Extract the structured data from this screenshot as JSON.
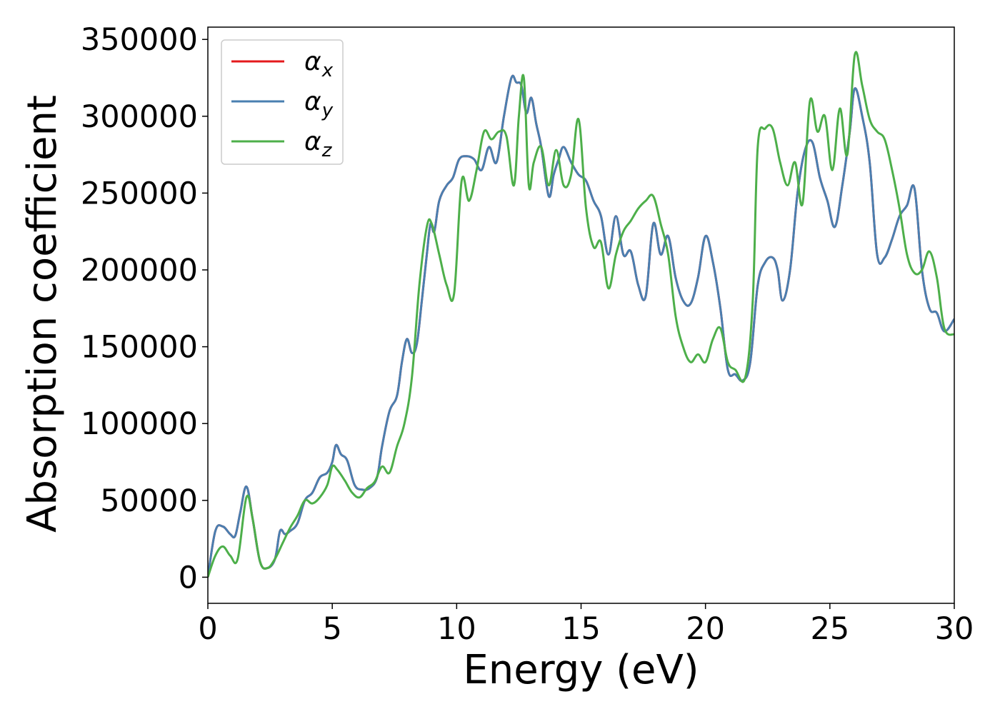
{
  "chart_data": {
    "type": "line",
    "title": "",
    "xlabel": "Energy (eV)",
    "ylabel": "Absorption coefficient",
    "xlim": [
      0,
      30
    ],
    "ylim": [
      -17000,
      358000
    ],
    "xticks": [
      0,
      5,
      10,
      15,
      20,
      25,
      30
    ],
    "yticks": [
      0,
      50000,
      100000,
      150000,
      200000,
      250000,
      300000,
      350000
    ],
    "grid": false,
    "legend_position": "top-left",
    "series": [
      {
        "name": "α",
        "subscript": "x",
        "color": "#e41a1c",
        "x": [
          0,
          0.3,
          0.6,
          0.9,
          1.1,
          1.3,
          1.55,
          1.8,
          2.1,
          2.4,
          2.7,
          2.9,
          3.1,
          3.3,
          3.6,
          3.9,
          4.2,
          4.5,
          4.8,
          5.0,
          5.15,
          5.35,
          5.6,
          5.9,
          6.2,
          6.5,
          6.8,
          7.0,
          7.3,
          7.6,
          7.8,
          8.0,
          8.2,
          8.4,
          8.6,
          8.8,
          8.95,
          9.1,
          9.3,
          9.6,
          9.85,
          10.1,
          10.4,
          10.7,
          11.0,
          11.3,
          11.6,
          11.9,
          12.2,
          12.4,
          12.6,
          12.8,
          13.0,
          13.2,
          13.4,
          13.7,
          13.9,
          14.1,
          14.3,
          14.6,
          14.9,
          15.2,
          15.5,
          15.8,
          16.1,
          16.4,
          16.7,
          17.0,
          17.3,
          17.6,
          17.9,
          18.2,
          18.5,
          18.8,
          19.1,
          19.4,
          19.7,
          20.0,
          20.3,
          20.6,
          20.9,
          21.2,
          21.5,
          21.8,
          22.1,
          22.4,
          22.7,
          22.9,
          23.1,
          23.4,
          23.7,
          24.0,
          24.3,
          24.6,
          24.9,
          25.2,
          25.5,
          25.8,
          26.0,
          26.3,
          26.6,
          26.9,
          27.2,
          27.5,
          27.8,
          28.1,
          28.4,
          28.7,
          29.0,
          29.3,
          29.6,
          30.0
        ],
        "y": [
          0,
          30000,
          33000,
          28000,
          27000,
          42000,
          59000,
          38000,
          10000,
          6000,
          12000,
          30000,
          28000,
          30000,
          35000,
          50000,
          55000,
          65000,
          68000,
          75000,
          86000,
          80000,
          76000,
          60000,
          57000,
          58000,
          65000,
          85000,
          108000,
          118000,
          140000,
          155000,
          146000,
          152000,
          180000,
          210000,
          230000,
          225000,
          245000,
          255000,
          260000,
          272000,
          274000,
          272000,
          265000,
          280000,
          270000,
          300000,
          325000,
          322000,
          320000,
          302000,
          312000,
          295000,
          280000,
          248000,
          262000,
          272000,
          280000,
          270000,
          262000,
          258000,
          245000,
          235000,
          210000,
          235000,
          210000,
          212000,
          190000,
          183000,
          230000,
          210000,
          222000,
          195000,
          180000,
          178000,
          195000,
          222000,
          205000,
          175000,
          135000,
          132000,
          128000,
          140000,
          190000,
          205000,
          208000,
          200000,
          180000,
          200000,
          250000,
          278000,
          283000,
          260000,
          245000,
          228000,
          255000,
          290000,
          318000,
          300000,
          270000,
          210000,
          208000,
          220000,
          235000,
          242000,
          253000,
          200000,
          175000,
          172000,
          160000,
          168000
        ],
        "hidden_under": "α_y"
      },
      {
        "name": "α",
        "subscript": "y",
        "color": "#4a7fb0",
        "x": [
          0,
          0.3,
          0.6,
          0.9,
          1.1,
          1.3,
          1.55,
          1.8,
          2.1,
          2.4,
          2.7,
          2.9,
          3.1,
          3.3,
          3.6,
          3.9,
          4.2,
          4.5,
          4.8,
          5.0,
          5.15,
          5.35,
          5.6,
          5.9,
          6.2,
          6.5,
          6.8,
          7.0,
          7.3,
          7.6,
          7.8,
          8.0,
          8.2,
          8.4,
          8.6,
          8.8,
          8.95,
          9.1,
          9.3,
          9.6,
          9.85,
          10.1,
          10.4,
          10.7,
          11.0,
          11.3,
          11.6,
          11.9,
          12.2,
          12.4,
          12.6,
          12.8,
          13.0,
          13.2,
          13.4,
          13.7,
          13.9,
          14.1,
          14.3,
          14.6,
          14.9,
          15.2,
          15.5,
          15.8,
          16.1,
          16.4,
          16.7,
          17.0,
          17.3,
          17.6,
          17.9,
          18.2,
          18.5,
          18.8,
          19.1,
          19.4,
          19.7,
          20.0,
          20.3,
          20.6,
          20.9,
          21.2,
          21.5,
          21.8,
          22.1,
          22.4,
          22.7,
          22.9,
          23.1,
          23.4,
          23.7,
          24.0,
          24.3,
          24.6,
          24.9,
          25.2,
          25.5,
          25.8,
          26.0,
          26.3,
          26.6,
          26.9,
          27.2,
          27.5,
          27.8,
          28.1,
          28.4,
          28.7,
          29.0,
          29.3,
          29.6,
          30.0
        ],
        "y": [
          0,
          30000,
          33000,
          28000,
          27000,
          42000,
          59000,
          38000,
          10000,
          6000,
          12000,
          30000,
          28000,
          30000,
          35000,
          50000,
          55000,
          65000,
          68000,
          75000,
          86000,
          80000,
          76000,
          60000,
          57000,
          58000,
          65000,
          85000,
          108000,
          118000,
          140000,
          155000,
          146000,
          152000,
          180000,
          210000,
          230000,
          225000,
          245000,
          255000,
          260000,
          272000,
          274000,
          272000,
          265000,
          280000,
          270000,
          300000,
          325000,
          322000,
          320000,
          302000,
          312000,
          295000,
          280000,
          248000,
          262000,
          272000,
          280000,
          270000,
          262000,
          258000,
          245000,
          235000,
          210000,
          235000,
          210000,
          212000,
          190000,
          183000,
          230000,
          210000,
          222000,
          195000,
          180000,
          178000,
          195000,
          222000,
          205000,
          175000,
          135000,
          132000,
          128000,
          140000,
          190000,
          205000,
          208000,
          200000,
          180000,
          200000,
          250000,
          278000,
          283000,
          260000,
          245000,
          228000,
          255000,
          290000,
          318000,
          300000,
          270000,
          210000,
          208000,
          220000,
          235000,
          242000,
          253000,
          200000,
          175000,
          172000,
          160000,
          168000
        ]
      },
      {
        "name": "α",
        "subscript": "z",
        "color": "#4daf4a",
        "x": [
          0,
          0.3,
          0.6,
          0.9,
          1.2,
          1.55,
          1.8,
          2.1,
          2.4,
          2.7,
          3.0,
          3.3,
          3.6,
          3.9,
          4.2,
          4.5,
          4.8,
          5.0,
          5.2,
          5.5,
          5.8,
          6.1,
          6.4,
          6.7,
          7.0,
          7.3,
          7.6,
          7.9,
          8.2,
          8.5,
          8.8,
          9.0,
          9.3,
          9.6,
          9.9,
          10.2,
          10.5,
          10.8,
          11.1,
          11.4,
          11.7,
          12.0,
          12.3,
          12.5,
          12.7,
          12.9,
          13.1,
          13.4,
          13.7,
          14.0,
          14.3,
          14.6,
          14.9,
          15.2,
          15.5,
          15.8,
          16.1,
          16.4,
          16.7,
          17.0,
          17.3,
          17.6,
          17.9,
          18.2,
          18.5,
          18.8,
          19.1,
          19.4,
          19.7,
          20.0,
          20.3,
          20.6,
          20.9,
          21.2,
          21.6,
          21.9,
          22.1,
          22.4,
          22.7,
          23.0,
          23.3,
          23.6,
          23.9,
          24.2,
          24.5,
          24.8,
          25.1,
          25.4,
          25.7,
          26.0,
          26.3,
          26.6,
          26.9,
          27.2,
          27.5,
          27.8,
          28.1,
          28.4,
          28.7,
          29.0,
          29.3,
          29.6,
          30.0
        ],
        "y": [
          0,
          14000,
          20000,
          14000,
          12000,
          52000,
          38000,
          10000,
          6000,
          12000,
          22000,
          32000,
          40000,
          50000,
          48000,
          52000,
          60000,
          72000,
          70000,
          63000,
          55000,
          52000,
          58000,
          62000,
          72000,
          68000,
          85000,
          100000,
          130000,
          190000,
          228000,
          230000,
          210000,
          190000,
          185000,
          258000,
          245000,
          265000,
          290000,
          285000,
          290000,
          287000,
          255000,
          300000,
          325000,
          255000,
          270000,
          280000,
          255000,
          278000,
          255000,
          262000,
          298000,
          240000,
          215000,
          218000,
          188000,
          210000,
          225000,
          232000,
          240000,
          245000,
          248000,
          230000,
          210000,
          170000,
          150000,
          140000,
          145000,
          140000,
          155000,
          162000,
          140000,
          135000,
          130000,
          180000,
          280000,
          292000,
          292000,
          270000,
          255000,
          270000,
          243000,
          310000,
          290000,
          300000,
          265000,
          305000,
          275000,
          340000,
          320000,
          298000,
          290000,
          285000,
          265000,
          240000,
          210000,
          198000,
          200000,
          212000,
          195000,
          162000,
          158000
        ]
      }
    ]
  }
}
